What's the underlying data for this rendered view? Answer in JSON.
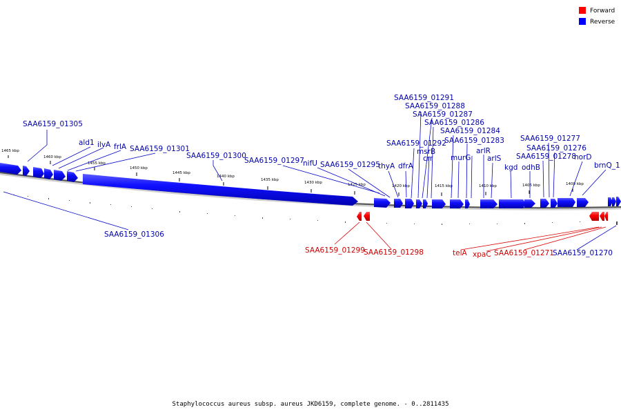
{
  "colors": {
    "forward": "#ff0000",
    "reverse": "#0000ff",
    "label_forward": "#cc0000",
    "label_reverse": "#0000aa"
  },
  "legend": {
    "forward_label": "Forward",
    "reverse_label": "Reverse"
  },
  "footer": {
    "caption": "Staphylococcus aureus subsp. aureus JKD6159, complete genome. - 0..2811435"
  },
  "scale_ticks": [
    "1465 kbp",
    "1460 kbp",
    "1455 kbp",
    "1450 kbp",
    "1445 kbp",
    "1440 kbp",
    "1435 kbp",
    "1430 kbp",
    "1425 kbp",
    "1420 kbp",
    "1415 kbp",
    "1410 kbp",
    "1405 kbp",
    "1400 kbp"
  ],
  "reverse_labels": [
    "SAA6159_01305",
    "ald1",
    "ilvA",
    "frlA",
    "SAA6159_01301",
    "SAA6159_01300",
    "SAA6159_01297",
    "nifU",
    "SAA6159_01295",
    "thyA",
    "dfrA",
    "SAA6159_01291",
    "SAA6159_01288",
    "SAA6159_01287",
    "SAA6159_01286",
    "SAA6159_01284",
    "SAA6159_01292",
    "msrB",
    "crr",
    "SAA6159_01283",
    "murG",
    "arlR",
    "arlS",
    "kgd",
    "odhB",
    "SAA6159_01278",
    "SAA6159_01277",
    "SAA6159_01276",
    "norD",
    "brnQ_1",
    "SAA6159_01306",
    "SAA6159_01270"
  ],
  "forward_labels": [
    "SAA6159_01299",
    "SAA6159_01298",
    "telA",
    "xpaC",
    "SAA6159_01271"
  ]
}
